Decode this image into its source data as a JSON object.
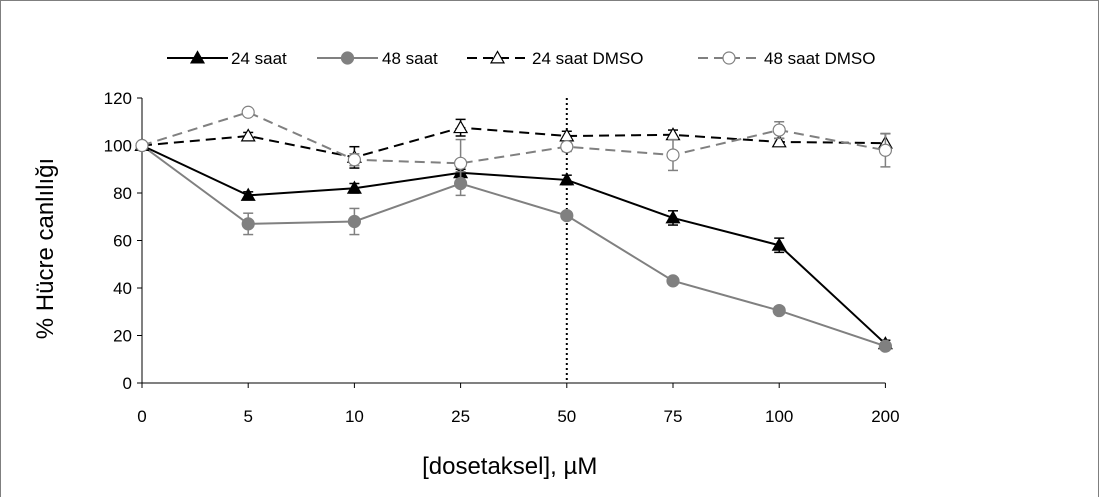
{
  "chart_data": {
    "type": "line",
    "categories": [
      "0",
      "5",
      "10",
      "25",
      "50",
      "75",
      "100",
      "200"
    ],
    "xlabel": "[dosetaksel], µM",
    "ylabel": "% Hücre canlılığı",
    "ylim": [
      0,
      120
    ],
    "yticks": [
      "0",
      "20",
      "40",
      "60",
      "80",
      "100",
      "120"
    ],
    "grid": false,
    "legend_position": "top",
    "reference_line_at": "50",
    "series": [
      {
        "name": "24 saat",
        "values": [
          100,
          79,
          82,
          88.5,
          85.5,
          69.5,
          58,
          16.5
        ],
        "errors": [
          0,
          1.5,
          2,
          1.5,
          2,
          3,
          3,
          1.5
        ],
        "color": "#000000",
        "dash": "solid",
        "marker": "triangle",
        "marker_fill": "#000000"
      },
      {
        "name": "48 saat",
        "values": [
          100,
          67,
          68,
          84,
          70.5,
          43,
          30.5,
          15.5
        ],
        "errors": [
          0,
          4.5,
          5.5,
          5,
          1.5,
          1.5,
          1.5,
          1
        ],
        "color": "#808080",
        "dash": "solid",
        "marker": "circle",
        "marker_fill": "#808080"
      },
      {
        "name": "24 saat DMSO",
        "values": [
          100,
          104,
          95,
          107.5,
          104,
          104.5,
          101.5,
          101
        ],
        "errors": [
          0,
          1.5,
          4.5,
          3.5,
          2,
          2,
          1.5,
          4
        ],
        "color": "#000000",
        "dash": "dashed",
        "marker": "triangle",
        "marker_fill": "#ffffff"
      },
      {
        "name": "48 saat DMSO",
        "values": [
          100,
          114,
          94,
          92.5,
          99.5,
          96,
          106.5,
          98
        ],
        "errors": [
          0,
          0,
          2.5,
          10,
          2,
          6.5,
          3.5,
          7
        ],
        "color": "#808080",
        "dash": "dashed",
        "marker": "circle",
        "marker_fill": "#ffffff"
      }
    ]
  }
}
